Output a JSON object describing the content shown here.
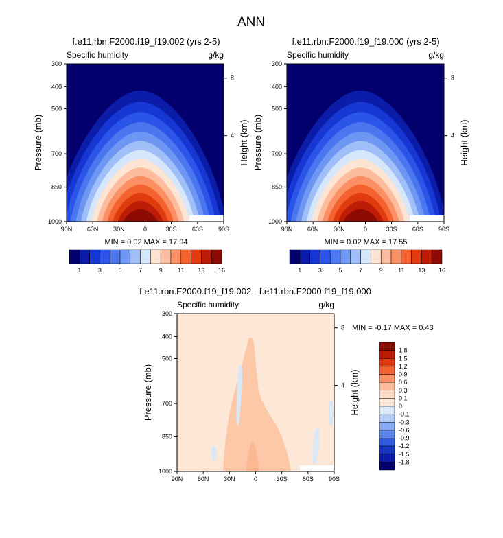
{
  "figure_title": "ANN",
  "chart_data": [
    {
      "type": "heatmap",
      "title": "f.e11.rbn.F2000.f19_f19.002 (yrs 2-5)",
      "subtitle_left": "Specific humidity",
      "subtitle_right": "g/kg",
      "ylabel": "Pressure (mb)",
      "ylabel_right": "Height (km)",
      "x_ticks": [
        "90N",
        "60N",
        "30N",
        "0",
        "30S",
        "60S",
        "90S"
      ],
      "y_ticks": [
        "300",
        "400",
        "500",
        "700",
        "850",
        "1000"
      ],
      "height_ticks": [
        "8",
        "4"
      ],
      "stats": "MIN =  0.02  MAX = 17.94",
      "min": 0.02,
      "max": 17.94,
      "colorbar_labels": [
        "1",
        "3",
        "5",
        "7",
        "9",
        "11",
        "13",
        "16"
      ],
      "colorbar_colors": [
        "#03006e",
        "#0b1ca8",
        "#1637d3",
        "#2b55e8",
        "#4a76ef",
        "#6e97f4",
        "#a0bff8",
        "#d6e6fb",
        "#fde4d3",
        "#fcbc9d",
        "#fb9064",
        "#f4622f",
        "#e03a0f",
        "#bd1c06",
        "#8e0b04"
      ],
      "lev_edges": [
        1,
        2,
        3,
        4,
        5,
        6,
        7,
        8,
        9,
        10,
        11,
        12,
        13,
        14,
        16
      ],
      "annotation": "MIN =  0.02  MAX = 17.94"
    },
    {
      "type": "heatmap",
      "title": "f.e11.rbn.F2000.f19_f19.000 (yrs 2-5)",
      "subtitle_left": "Specific humidity",
      "subtitle_right": "g/kg",
      "ylabel": "Pressure (mb)",
      "ylabel_right": "Height (km)",
      "x_ticks": [
        "90N",
        "60N",
        "30N",
        "0",
        "30S",
        "60S",
        "90S"
      ],
      "y_ticks": [
        "300",
        "400",
        "500",
        "700",
        "850",
        "1000"
      ],
      "height_ticks": [
        "8",
        "4"
      ],
      "stats": "MIN =  0.02  MAX = 17.55",
      "min": 0.02,
      "max": 17.55,
      "colorbar_labels": [
        "1",
        "3",
        "5",
        "7",
        "9",
        "11",
        "13",
        "16"
      ],
      "colorbar_colors": [
        "#03006e",
        "#0b1ca8",
        "#1637d3",
        "#2b55e8",
        "#4a76ef",
        "#6e97f4",
        "#a0bff8",
        "#d6e6fb",
        "#fde4d3",
        "#fcbc9d",
        "#fb9064",
        "#f4622f",
        "#e03a0f",
        "#bd1c06",
        "#8e0b04"
      ],
      "lev_edges": [
        1,
        2,
        3,
        4,
        5,
        6,
        7,
        8,
        9,
        10,
        11,
        12,
        13,
        14,
        16
      ]
    },
    {
      "type": "heatmap",
      "title": "f.e11.rbn.F2000.f19_f19.002 - f.e11.rbn.F2000.f19_f19.000",
      "subtitle_left": "Specific humidity",
      "subtitle_right": "g/kg",
      "ylabel": "Pressure (mb)",
      "ylabel_right": "Height (km)",
      "x_ticks": [
        "90N",
        "60N",
        "30N",
        "0",
        "30S",
        "60S",
        "90S"
      ],
      "y_ticks": [
        "300",
        "400",
        "500",
        "700",
        "850",
        "1000"
      ],
      "height_ticks": [
        "8",
        "4"
      ],
      "stats": "MIN =  -0.17  MAX =  0.43",
      "min": -0.17,
      "max": 0.43,
      "colorbar_labels": [
        "1.8",
        "1.5",
        "1.2",
        "0.9",
        "0.6",
        "0.3",
        "0.1",
        "0",
        "-0.1",
        "-0.3",
        "-0.6",
        "-0.9",
        "-1.2",
        "-1.5",
        "-1.8"
      ],
      "colorbar_colors": [
        "#8e0b04",
        "#bd1c06",
        "#e03a0f",
        "#f4622f",
        "#fb9064",
        "#fcbc9d",
        "#fddcc6",
        "#fde8d8",
        "#dce9f8",
        "#b3cdf6",
        "#86a9f1",
        "#5a85ec",
        "#2f5bdf",
        "#1636c2",
        "#0b1ca8",
        "#03006e"
      ],
      "background_color": "#fde8d8",
      "positive_color": "#fcc8a8",
      "negative_color": "#d9e8f7"
    }
  ]
}
